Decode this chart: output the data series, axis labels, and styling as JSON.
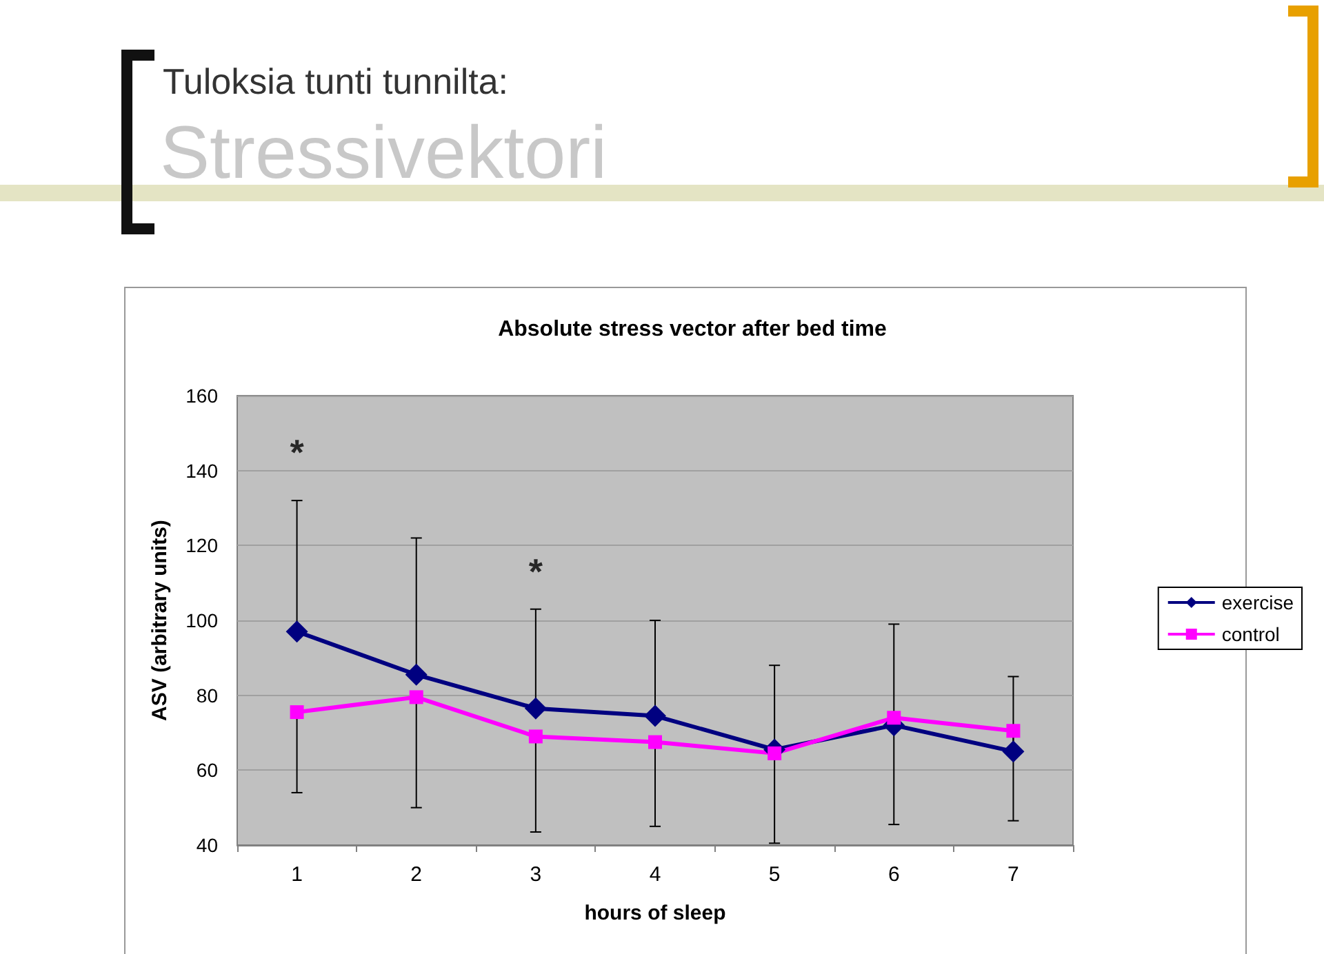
{
  "chart_data": {
    "type": "line",
    "title": "Absolute stress vector after bed time",
    "xlabel": "hours of sleep",
    "ylabel": "ASV (arbitrary units)",
    "annotations": [
      "Tuloksia tunti tunnilta:",
      "Stressivektori",
      "*",
      "*"
    ],
    "categories": [
      "1",
      "2",
      "3",
      "4",
      "5",
      "6",
      "7"
    ],
    "series": [
      {
        "name": "exercise",
        "color": "#000080",
        "marker": "diamond",
        "values": [
          97,
          85.5,
          76.5,
          74.5,
          65.5,
          72,
          65
        ],
        "errors": [
          [
            97,
            132
          ],
          [
            85.5,
            122
          ],
          [
            76.5,
            103
          ],
          [
            74.5,
            100
          ],
          [
            65.5,
            88
          ],
          [
            72,
            99
          ],
          [
            65,
            85
          ]
        ]
      },
      {
        "name": "control",
        "color": "#ff00ff",
        "marker": "square",
        "values": [
          75.5,
          79.5,
          69,
          67.5,
          64.5,
          74,
          70.5
        ],
        "errors": [
          [
            54,
            75.5
          ],
          [
            50,
            79.5
          ],
          [
            43.5,
            69
          ],
          [
            45,
            67.5
          ],
          [
            40.5,
            64.5
          ],
          [
            45.5,
            74
          ],
          [
            46.5,
            70.5
          ]
        ]
      }
    ],
    "ylim": [
      40,
      160
    ],
    "yticks": [
      40,
      60,
      80,
      100,
      120,
      140,
      160
    ],
    "grid": "y",
    "legend": "right",
    "line_style": "solid"
  }
}
